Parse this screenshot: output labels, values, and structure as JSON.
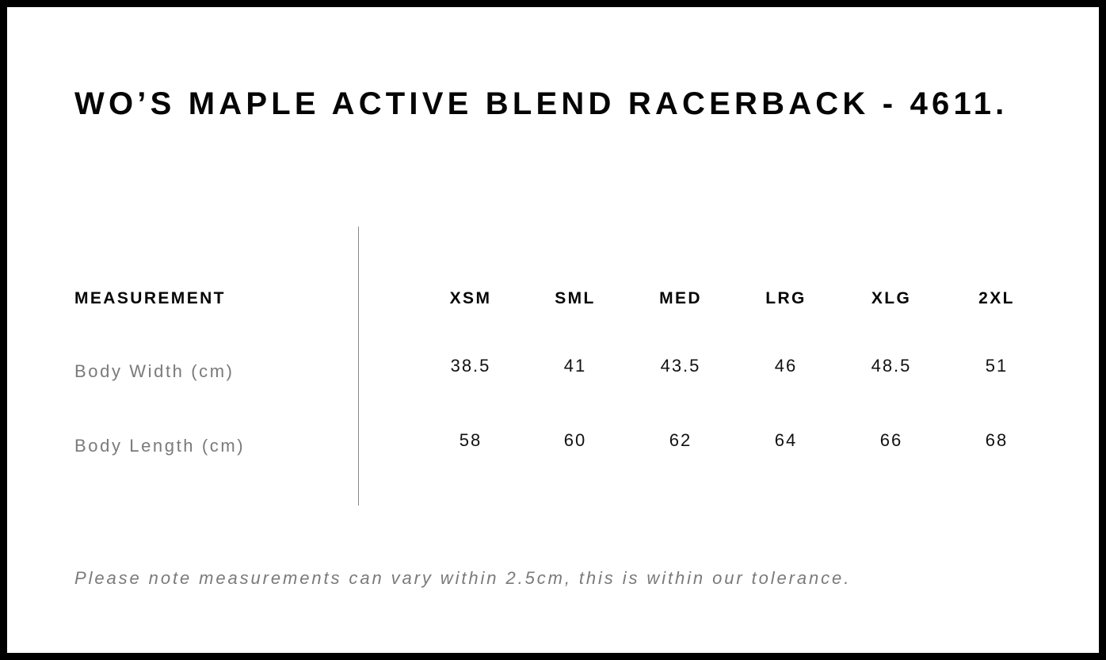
{
  "title": "WO’S MAPLE ACTIVE BLEND RACERBACK - 4611.",
  "table": {
    "header_label": "MEASUREMENT",
    "sizes": [
      "XSM",
      "SML",
      "MED",
      "LRG",
      "XLG",
      "2XL"
    ],
    "rows": [
      {
        "label": "Body Width (cm)",
        "values": [
          "38.5",
          "41",
          "43.5",
          "46",
          "48.5",
          "51"
        ]
      },
      {
        "label": "Body Length (cm)",
        "values": [
          "58",
          "60",
          "62",
          "64",
          "66",
          "68"
        ]
      }
    ]
  },
  "note": "Please note measurements can vary within 2.5cm, this is within our tolerance."
}
